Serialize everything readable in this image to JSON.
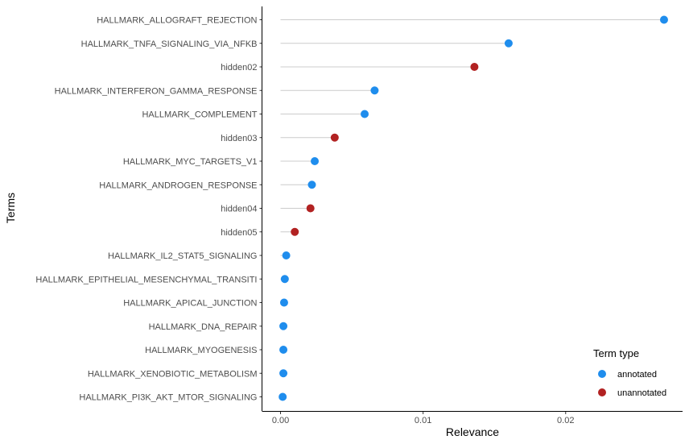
{
  "chart_data": {
    "type": "scatter",
    "subtype": "lollipop",
    "title": "",
    "xlabel": "Relevance",
    "ylabel": "Terms",
    "xlim": [
      -0.0013,
      0.0282
    ],
    "x_ticks": [
      0,
      0.01,
      0.02
    ],
    "x_tick_labels": [
      "0.00",
      "0.01",
      "0.02"
    ],
    "grid": false,
    "legend": {
      "title": "Term type",
      "position": "bottom-right",
      "entries": [
        {
          "label": "annotated",
          "color": "#1f8ded"
        },
        {
          "label": "unannotated",
          "color": "#b22222"
        }
      ]
    },
    "stem_color": "#cccccc",
    "series": [
      {
        "name": "annotated",
        "color": "#1f8ded"
      },
      {
        "name": "unannotated",
        "color": "#b22222"
      }
    ],
    "points": [
      {
        "term": "HALLMARK_ALLOGRAFT_REJECTION",
        "value": 0.0269,
        "type": "annotated"
      },
      {
        "term": "HALLMARK_TNFA_SIGNALING_VIA_NFKB",
        "value": 0.016,
        "type": "annotated"
      },
      {
        "term": "hidden02",
        "value": 0.0136,
        "type": "unannotated"
      },
      {
        "term": "HALLMARK_INTERFERON_GAMMA_RESPONSE",
        "value": 0.0066,
        "type": "annotated"
      },
      {
        "term": "HALLMARK_COMPLEMENT",
        "value": 0.0059,
        "type": "annotated"
      },
      {
        "term": "hidden03",
        "value": 0.0038,
        "type": "unannotated"
      },
      {
        "term": "HALLMARK_MYC_TARGETS_V1",
        "value": 0.0024,
        "type": "annotated"
      },
      {
        "term": "HALLMARK_ANDROGEN_RESPONSE",
        "value": 0.0022,
        "type": "annotated"
      },
      {
        "term": "hidden04",
        "value": 0.0021,
        "type": "unannotated"
      },
      {
        "term": "hidden05",
        "value": 0.001,
        "type": "unannotated"
      },
      {
        "term": "HALLMARK_IL2_STAT5_SIGNALING",
        "value": 0.0004,
        "type": "annotated"
      },
      {
        "term": "HALLMARK_EPITHELIAL_MESENCHYMAL_TRANSITI",
        "value": 0.0003,
        "type": "annotated"
      },
      {
        "term": "HALLMARK_APICAL_JUNCTION",
        "value": 0.00025,
        "type": "annotated"
      },
      {
        "term": "HALLMARK_DNA_REPAIR",
        "value": 0.0002,
        "type": "annotated"
      },
      {
        "term": "HALLMARK_MYOGENESIS",
        "value": 0.0002,
        "type": "annotated"
      },
      {
        "term": "HALLMARK_XENOBIOTIC_METABOLISM",
        "value": 0.0002,
        "type": "annotated"
      },
      {
        "term": "HALLMARK_PI3K_AKT_MTOR_SIGNALING",
        "value": 0.00015,
        "type": "annotated"
      }
    ]
  }
}
